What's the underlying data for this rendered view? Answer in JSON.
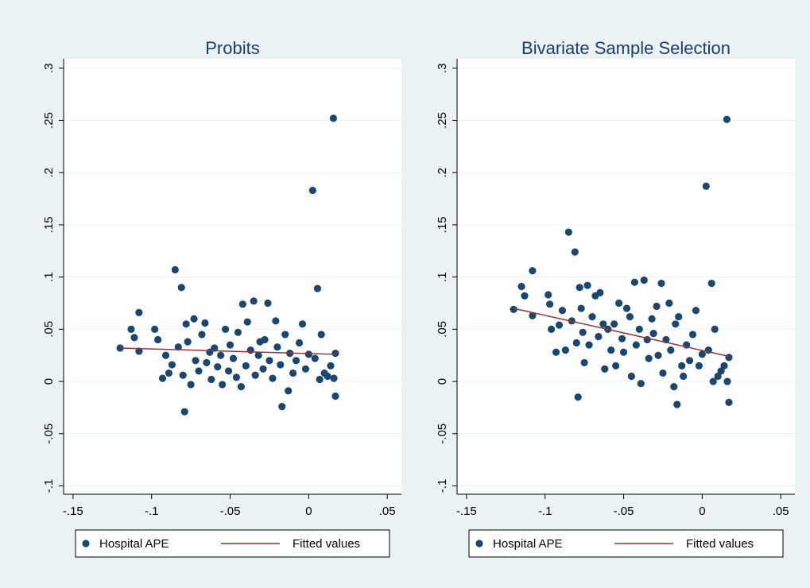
{
  "chart_data": [
    {
      "type": "scatter",
      "title": "Probits",
      "xlim": [
        -0.156,
        0.059
      ],
      "ylim": [
        -0.108,
        0.309
      ],
      "xticks": [
        {
          "value": -0.15,
          "label": "-.15"
        },
        {
          "value": -0.1,
          "label": "-.1"
        },
        {
          "value": -0.05,
          "label": "-.05"
        },
        0,
        {
          "value": 0.05,
          "label": ".05"
        }
      ],
      "yticks": [
        {
          "value": -0.1,
          "label": "-.1"
        },
        {
          "value": -0.05,
          "label": "-.05"
        },
        0,
        {
          "value": 0.05,
          "label": ".05"
        },
        {
          "value": 0.1,
          "label": ".1"
        },
        {
          "value": 0.15,
          "label": ".15"
        },
        {
          "value": 0.2,
          "label": ".2"
        },
        {
          "value": 0.25,
          "label": ".25"
        },
        {
          "value": 0.3,
          "label": ".3"
        }
      ],
      "grid": true,
      "series": [
        {
          "name": "Hospital APE",
          "color": "#1a476f",
          "x": [
            -0.12,
            -0.113,
            -0.111,
            -0.108,
            -0.108,
            -0.098,
            -0.096,
            -0.093,
            -0.091,
            -0.089,
            -0.087,
            -0.085,
            -0.083,
            -0.081,
            -0.08,
            -0.079,
            -0.078,
            -0.077,
            -0.075,
            -0.073,
            -0.072,
            -0.07,
            -0.068,
            -0.066,
            -0.065,
            -0.063,
            -0.062,
            -0.06,
            -0.058,
            -0.056,
            -0.055,
            -0.053,
            -0.051,
            -0.05,
            -0.048,
            -0.046,
            -0.045,
            -0.043,
            -0.042,
            -0.04,
            -0.039,
            -0.037,
            -0.035,
            -0.034,
            -0.032,
            -0.031,
            -0.029,
            -0.028,
            -0.026,
            -0.025,
            -0.023,
            -0.021,
            -0.02,
            -0.018,
            -0.017,
            -0.015,
            -0.013,
            -0.012,
            -0.01,
            -0.008,
            -0.006,
            -0.004,
            -0.002,
            0.0,
            0.0025,
            0.004,
            0.0056,
            0.007,
            0.008,
            0.01,
            0.012,
            0.014,
            0.0157,
            0.016,
            0.017,
            0.017
          ],
          "values": [
            0.032,
            0.05,
            0.042,
            0.066,
            0.029,
            0.05,
            0.04,
            0.003,
            0.025,
            0.008,
            0.016,
            0.107,
            0.033,
            0.09,
            0.006,
            -0.029,
            0.055,
            0.038,
            -0.003,
            0.06,
            0.02,
            0.01,
            0.045,
            0.056,
            0.018,
            0.028,
            0.002,
            0.032,
            0.014,
            0.025,
            -0.003,
            0.05,
            0.01,
            0.035,
            0.022,
            0.004,
            0.047,
            -0.005,
            0.074,
            0.015,
            0.057,
            0.03,
            0.077,
            0.006,
            0.025,
            0.038,
            0.012,
            0.04,
            0.075,
            0.02,
            0.003,
            0.058,
            0.033,
            0.016,
            -0.024,
            0.045,
            -0.009,
            0.027,
            0.008,
            0.02,
            0.037,
            0.055,
            0.012,
            0.026,
            0.183,
            0.022,
            0.089,
            0.002,
            0.045,
            0.008,
            0.005,
            0.015,
            0.252,
            0.003,
            -0.014,
            0.027
          ]
        },
        {
          "name": "Fitted values",
          "color": "#90353b",
          "x": [
            -0.12,
            0.017
          ],
          "values": [
            0.032,
            0.026
          ]
        }
      ]
    },
    {
      "type": "scatter",
      "title": "Bivariate Sample Selection",
      "xlim": [
        -0.156,
        0.059
      ],
      "ylim": [
        -0.108,
        0.309
      ],
      "xticks": [
        {
          "value": -0.15,
          "label": "-.15"
        },
        {
          "value": -0.1,
          "label": "-.1"
        },
        {
          "value": -0.05,
          "label": "-.05"
        },
        0,
        {
          "value": 0.05,
          "label": ".05"
        }
      ],
      "yticks": [
        {
          "value": -0.1,
          "label": "-.1"
        },
        {
          "value": -0.05,
          "label": "-.05"
        },
        0,
        {
          "value": 0.05,
          "label": ".05"
        },
        {
          "value": 0.1,
          "label": ".1"
        },
        {
          "value": 0.15,
          "label": ".15"
        },
        {
          "value": 0.2,
          "label": ".2"
        },
        {
          "value": 0.25,
          "label": ".25"
        },
        {
          "value": 0.3,
          "label": ".3"
        }
      ],
      "grid": true,
      "series": [
        {
          "name": "Hospital APE",
          "color": "#1a476f",
          "x": [
            -0.12,
            -0.115,
            -0.113,
            -0.108,
            -0.108,
            -0.098,
            -0.097,
            -0.096,
            -0.093,
            -0.091,
            -0.089,
            -0.087,
            -0.085,
            -0.083,
            -0.081,
            -0.08,
            -0.079,
            -0.078,
            -0.077,
            -0.076,
            -0.075,
            -0.073,
            -0.072,
            -0.07,
            -0.068,
            -0.066,
            -0.065,
            -0.063,
            -0.062,
            -0.06,
            -0.058,
            -0.056,
            -0.055,
            -0.053,
            -0.051,
            -0.05,
            -0.048,
            -0.046,
            -0.045,
            -0.043,
            -0.042,
            -0.04,
            -0.039,
            -0.037,
            -0.035,
            -0.034,
            -0.032,
            -0.031,
            -0.029,
            -0.028,
            -0.026,
            -0.025,
            -0.023,
            -0.021,
            -0.02,
            -0.018,
            -0.017,
            -0.016,
            -0.015,
            -0.013,
            -0.012,
            -0.01,
            -0.008,
            -0.006,
            -0.004,
            -0.002,
            0.0,
            0.0025,
            0.004,
            0.006,
            0.007,
            0.008,
            0.01,
            0.012,
            0.014,
            0.0157,
            0.016,
            0.017,
            0.017
          ],
          "values": [
            0.069,
            0.091,
            0.082,
            0.106,
            0.063,
            0.083,
            0.074,
            0.05,
            0.028,
            0.054,
            0.068,
            0.03,
            0.143,
            0.058,
            0.124,
            0.037,
            -0.015,
            0.09,
            0.07,
            0.047,
            0.018,
            0.092,
            0.035,
            0.062,
            0.082,
            0.043,
            0.085,
            0.055,
            0.012,
            0.05,
            0.03,
            0.055,
            0.015,
            0.075,
            0.041,
            0.028,
            0.07,
            0.062,
            0.005,
            0.095,
            0.035,
            0.05,
            -0.002,
            0.097,
            0.04,
            0.022,
            0.06,
            0.046,
            0.072,
            0.025,
            0.094,
            0.008,
            0.04,
            0.075,
            0.03,
            -0.005,
            0.055,
            -0.022,
            0.062,
            0.015,
            0.005,
            0.035,
            0.02,
            0.045,
            0.068,
            0.015,
            0.026,
            0.187,
            0.03,
            0.094,
            0.0,
            0.05,
            0.005,
            0.01,
            0.015,
            0.251,
            0.0,
            -0.02,
            0.023
          ]
        },
        {
          "name": "Fitted values",
          "color": "#90353b",
          "x": [
            -0.12,
            0.017
          ],
          "values": [
            0.07,
            0.024
          ]
        }
      ]
    }
  ]
}
